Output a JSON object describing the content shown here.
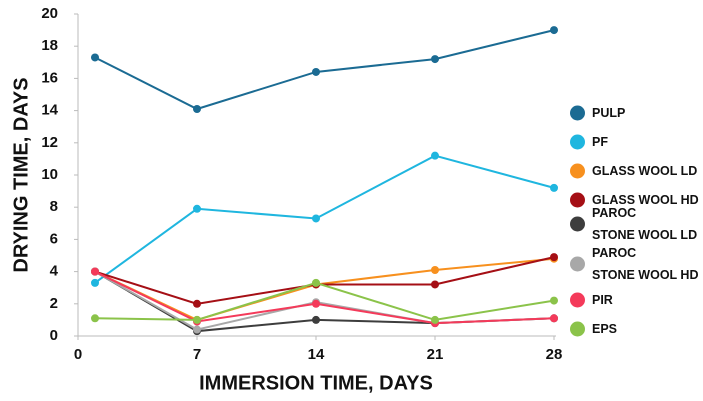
{
  "chart_data": {
    "type": "line",
    "x_label": "IMMERSION TIME, DAYS",
    "y_label": "DRYING TIME, DAYS",
    "x": [
      1,
      7,
      14,
      21,
      28
    ],
    "xlim": [
      0,
      28
    ],
    "xticks": [
      0,
      7,
      14,
      21,
      28
    ],
    "ylim": [
      0,
      20
    ],
    "yticks": [
      0,
      2,
      4,
      6,
      8,
      10,
      12,
      14,
      16,
      18,
      20
    ],
    "grid": false,
    "legend": "right",
    "series": [
      {
        "name": "PULP",
        "color": "#1b6b93",
        "values": [
          17.3,
          14.1,
          16.4,
          17.2,
          19.0
        ]
      },
      {
        "name": "PF",
        "color": "#1fb6df",
        "values": [
          3.3,
          7.9,
          7.3,
          11.2,
          9.2
        ]
      },
      {
        "name": "GLASS WOOL LD",
        "color": "#f7901e",
        "values": [
          4.0,
          1.0,
          3.2,
          4.1,
          4.8
        ]
      },
      {
        "name": "GLASS WOOL HD",
        "color": "#a50f15",
        "values": [
          4.0,
          2.0,
          3.2,
          3.2,
          4.9
        ]
      },
      {
        "name": "PAROC\nSTONE WOOL LD",
        "color": "#3d3d3d",
        "values": [
          4.0,
          0.3,
          1.0,
          0.8,
          1.1
        ]
      },
      {
        "name": "PAROC\nSTONE WOOL HD",
        "color": "#a8a8a8",
        "values": [
          4.0,
          0.4,
          2.1,
          0.8,
          1.1
        ]
      },
      {
        "name": "PIR",
        "color": "#f43a5a",
        "values": [
          4.0,
          0.9,
          2.0,
          0.8,
          1.1
        ]
      },
      {
        "name": "EPS",
        "color": "#8bc34a",
        "values": [
          1.1,
          1.0,
          3.3,
          1.0,
          2.2
        ]
      }
    ]
  }
}
